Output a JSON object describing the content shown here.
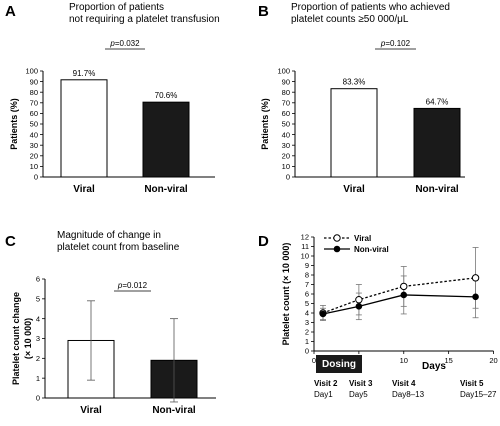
{
  "chart_data": [
    {
      "panel": "A",
      "type": "bar",
      "title_lines": [
        "Proportion of patients",
        "not requiring a platelet transfusion"
      ],
      "ylabel": "Patients (%)",
      "ylim": [
        0,
        100
      ],
      "yticks": [
        0,
        10,
        20,
        30,
        40,
        50,
        60,
        70,
        80,
        90,
        100
      ],
      "categories": [
        "Viral",
        "Non-viral"
      ],
      "values": [
        91.7,
        70.6
      ],
      "value_labels": [
        "91.7%",
        "70.6%"
      ],
      "fills": [
        "#ffffff",
        "#1a1a1a"
      ],
      "p_value": {
        "prefix": "p",
        "text": "=0.032"
      }
    },
    {
      "panel": "B",
      "type": "bar",
      "title_lines": [
        "Proportion of patients who achieved",
        "platelet counts ≥50 000/μL"
      ],
      "ylabel": "Patients (%)",
      "ylim": [
        0,
        100
      ],
      "yticks": [
        0,
        10,
        20,
        30,
        40,
        50,
        60,
        70,
        80,
        90,
        100
      ],
      "categories": [
        "Viral",
        "Non-viral"
      ],
      "values": [
        83.3,
        64.7
      ],
      "value_labels": [
        "83.3%",
        "64.7%"
      ],
      "fills": [
        "#ffffff",
        "#1a1a1a"
      ],
      "p_value": {
        "prefix": "p",
        "text": "=0.102"
      }
    },
    {
      "panel": "C",
      "type": "bar",
      "title_lines": [
        "Magnitude of change in",
        "platelet count from baseline"
      ],
      "ylabel_lines": [
        "Platelet count change",
        "(× 10 000)"
      ],
      "ylim": [
        0,
        6
      ],
      "yticks": [
        0,
        1,
        2,
        3,
        4,
        5,
        6
      ],
      "categories": [
        "Viral",
        "Non-viral"
      ],
      "values": [
        2.9,
        1.9
      ],
      "error": [
        2.0,
        2.1
      ],
      "fills": [
        "#ffffff",
        "#1a1a1a"
      ],
      "p_value": {
        "prefix": "p",
        "text": "=0.012"
      }
    },
    {
      "panel": "D",
      "type": "line",
      "xlabel": "Days",
      "ylabel": "Platelet count (× 10 000)",
      "xlim": [
        0,
        20
      ],
      "xticks": [
        0,
        5,
        10,
        15,
        20
      ],
      "ylim": [
        0,
        12
      ],
      "yticks": [
        0,
        1,
        2,
        3,
        4,
        5,
        6,
        7,
        8,
        9,
        10,
        11,
        12
      ],
      "series": [
        {
          "name": "Viral",
          "x": [
            1,
            5,
            10,
            18
          ],
          "y": [
            4.0,
            5.4,
            6.8,
            7.7
          ],
          "err": [
            0.8,
            1.6,
            2.1,
            3.2
          ],
          "marker": "open",
          "dash": true
        },
        {
          "name": "Non-viral",
          "x": [
            1,
            5,
            10,
            18
          ],
          "y": [
            3.9,
            4.7,
            5.9,
            5.7
          ],
          "err": [
            0.6,
            1.4,
            2.0,
            2.2
          ],
          "marker": "filled",
          "dash": false
        }
      ],
      "dosing_label": "Dosing",
      "visits": [
        {
          "visit": "Visit 2",
          "day": "Day1",
          "x": 1
        },
        {
          "visit": "Visit 3",
          "day": "Day5",
          "x": 5
        },
        {
          "visit": "Visit 4",
          "day": "Day8–13",
          "x": 10
        },
        {
          "visit": "Visit 5",
          "day": "Day15–27",
          "x": 18
        }
      ]
    }
  ]
}
